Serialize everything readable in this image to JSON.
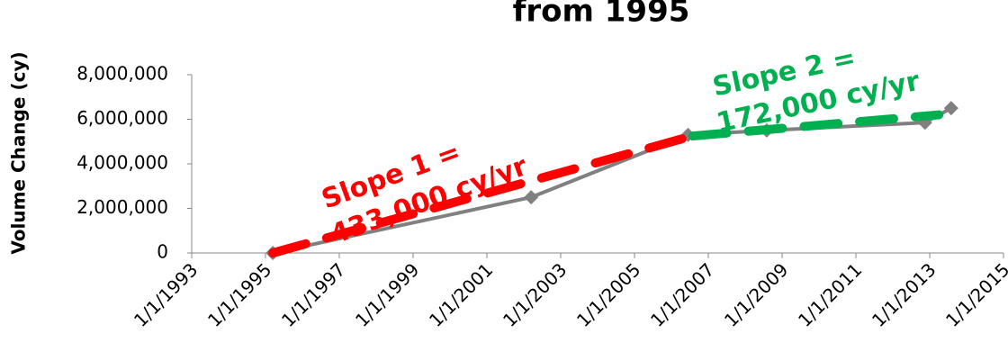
{
  "chart_data": {
    "type": "line",
    "title": "from 1995",
    "y_label": "Volume Change (cy)",
    "x": [
      "1995-03-15",
      "2002-03-15",
      "2006-06-15",
      "2008-08-01",
      "2012-11-15",
      "2013-08-01"
    ],
    "series": [
      {
        "color": "#808080",
        "values": [
          0,
          2500000,
          5300000,
          5500000,
          5850000,
          6500000
        ]
      }
    ],
    "trend_lines": [
      {
        "color": "#ff0000",
        "x": [
          "1995-03-15",
          "2006-06-15"
        ],
        "values": [
          0,
          5200000
        ]
      },
      {
        "color": "#00b050",
        "x": [
          "2006-08-01",
          "2013-04-01"
        ],
        "values": [
          5250000,
          6200000
        ]
      }
    ],
    "annotations": [
      {
        "lines": [
          "Slope 1 =",
          "433,000 cy/yr"
        ],
        "color": "#ff0000"
      },
      {
        "lines": [
          "Slope 2 =",
          "172,000 cy/yr"
        ],
        "color": "#00b050"
      }
    ],
    "xlim": [
      "1993-01-01",
      "2015-01-01"
    ],
    "xticks": [
      {
        "value": "1993-01-01",
        "label": "1/1/1993"
      },
      {
        "value": "1995-01-01",
        "label": "1/1/1995"
      },
      {
        "value": "1997-01-01",
        "label": "1/1/1997"
      },
      {
        "value": "1999-01-01",
        "label": "1/1/1999"
      },
      {
        "value": "2001-01-01",
        "label": "1/1/2001"
      },
      {
        "value": "2003-01-01",
        "label": "1/1/2003"
      },
      {
        "value": "2005-01-01",
        "label": "1/1/2005"
      },
      {
        "value": "2007-01-01",
        "label": "1/1/2007"
      },
      {
        "value": "2009-01-01",
        "label": "1/1/2009"
      },
      {
        "value": "2011-01-01",
        "label": "1/1/2011"
      },
      {
        "value": "2013-01-01",
        "label": "1/1/2013"
      },
      {
        "value": "2015-01-01",
        "label": "1/1/2015"
      }
    ],
    "ylim": [
      0,
      8000000
    ],
    "yticks": [
      0,
      {
        "value": 2000000,
        "label": "2,000,000"
      },
      {
        "value": 4000000,
        "label": "4,000,000"
      },
      {
        "value": 6000000,
        "label": "6,000,000"
      },
      {
        "value": 8000000,
        "label": "8,000,000"
      }
    ],
    "grid": false
  }
}
